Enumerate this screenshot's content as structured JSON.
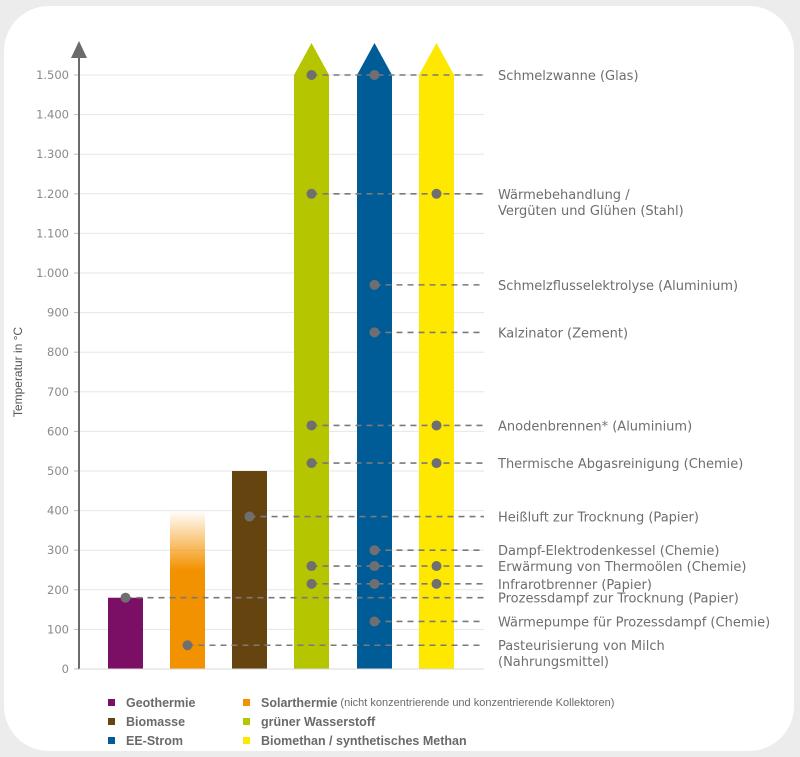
{
  "chart_data": {
    "type": "bar",
    "title": "",
    "xlabel": "",
    "ylabel": "Temperatur in °C",
    "ylim": [
      0,
      1500
    ],
    "grid": true,
    "yticks": [
      {
        "value": 0,
        "label": "0"
      },
      {
        "value": 100,
        "label": "100"
      },
      {
        "value": 200,
        "label": "200"
      },
      {
        "value": 300,
        "label": "300"
      },
      {
        "value": 400,
        "label": "400"
      },
      {
        "value": 500,
        "label": "500"
      },
      {
        "value": 600,
        "label": "600"
      },
      {
        "value": 700,
        "label": "700"
      },
      {
        "value": 800,
        "label": "800"
      },
      {
        "value": 900,
        "label": "900"
      },
      {
        "value": 1000,
        "label": "1.000"
      },
      {
        "value": 1100,
        "label": "1.100"
      },
      {
        "value": 1200,
        "label": "1.200"
      },
      {
        "value": 1300,
        "label": "1.300"
      },
      {
        "value": 1400,
        "label": "1.400"
      },
      {
        "value": 1500,
        "label": "1.500"
      }
    ],
    "series": [
      {
        "key": "geo",
        "name": "Geothermie",
        "color": "#7b0f66",
        "value": 180,
        "open_ended": false
      },
      {
        "key": "solar",
        "name": "Solarthermie",
        "note": "(nicht konzentrierende und konzentrierende Kollektoren)",
        "color": "#f39200",
        "value": 250,
        "fade_to": 400,
        "open_ended": false
      },
      {
        "key": "bio",
        "name": "Biomasse",
        "color": "#654410",
        "value": 500,
        "open_ended": false
      },
      {
        "key": "h2",
        "name": "grüner Wasserstoff",
        "legend_text": "grüner Wasserstoff",
        "color": "#b5c500",
        "value": 1500,
        "open_ended": true
      },
      {
        "key": "ee",
        "name": "EE-Strom",
        "color": "#005c96",
        "value": 1500,
        "open_ended": true
      },
      {
        "key": "ch4",
        "name": "Biomethan / synthetisches Methan",
        "color": "#ffe800",
        "value": 1500,
        "open_ended": true
      }
    ],
    "applications": [
      {
        "label": "Schmelzwanne (Glas)",
        "value": 1500,
        "sources": [
          "h2",
          "ee"
        ]
      },
      {
        "label": "Wärmebehandlung /",
        "label2": "Vergüten und Glühen (Stahl)",
        "value": 1200,
        "sources": [
          "h2",
          "ch4"
        ]
      },
      {
        "label": "Schmelzflusselektrolyse (Aluminium)",
        "value": 970,
        "sources": [
          "ee"
        ]
      },
      {
        "label": "Kalzinator (Zement)",
        "value": 850,
        "sources": [
          "ee"
        ]
      },
      {
        "label": "Anodenbrennen* (Aluminium)",
        "value": 615,
        "sources": [
          "h2",
          "ch4"
        ]
      },
      {
        "label": "Thermische Abgasreinigung (Chemie)",
        "value": 520,
        "sources": [
          "h2",
          "ch4"
        ]
      },
      {
        "label": "Heißluft zur Trocknung (Papier)",
        "value": 385,
        "sources": [
          "bio"
        ]
      },
      {
        "label": "Dampf-Elektrodenkessel (Chemie)",
        "value": 300,
        "sources": [
          "ee"
        ]
      },
      {
        "label": "Erwärmung von Thermoölen (Chemie)",
        "value": 260,
        "sources": [
          "h2",
          "ee",
          "ch4"
        ]
      },
      {
        "label": "Infrarotbrenner (Papier)",
        "value": 215,
        "sources": [
          "h2",
          "ee",
          "ch4"
        ]
      },
      {
        "label": "Prozessdampf zur Trocknung (Papier)",
        "value": 180,
        "sources": [
          "geo"
        ]
      },
      {
        "label": "Wärmepumpe für Prozessdampf (Chemie)",
        "value": 120,
        "sources": [
          "ee"
        ]
      },
      {
        "label": "Pasteurisierung von Milch",
        "label2": "(Nahrungsmittel)",
        "value": 60,
        "sources": [
          "solar"
        ]
      }
    ],
    "legend_placement": "bottom"
  },
  "legend": {
    "rows": [
      [
        {
          "key": "geo",
          "name": "Geothermie",
          "color": "#7b0f66"
        },
        {
          "key": "solar",
          "name": "Solarthermie",
          "note": "(nicht konzentrierende und konzentrierende Kollektoren)",
          "color": "#f39200"
        }
      ],
      [
        {
          "key": "bio",
          "name": "Biomasse",
          "color": "#654410"
        },
        {
          "key": "h2",
          "name": "grüner Wasserstoff",
          "color": "#b5c500"
        }
      ],
      [
        {
          "key": "ee",
          "name": "EE-Strom",
          "color": "#005c96"
        },
        {
          "key": "ch4",
          "name": "Biomethan / synthetisches Methan",
          "color": "#ffe800"
        }
      ]
    ]
  },
  "colors": {
    "axis": "#6b6b6b",
    "grid": "#e6e6e6",
    "dot": "#6f6f6f",
    "dash": "#7a7a7a"
  }
}
